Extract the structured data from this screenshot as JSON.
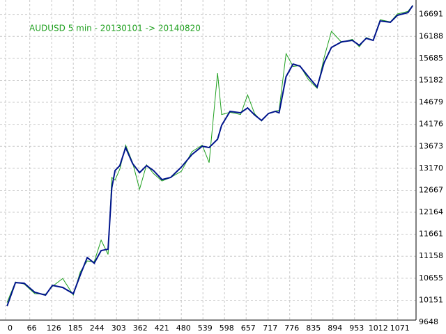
{
  "chart_data": {
    "type": "line",
    "title": "AUDUSD 5 min - 20130101 -> 20140820",
    "x": [
      4,
      27,
      51,
      80,
      109,
      128,
      156,
      185,
      204,
      223,
      242,
      261,
      280,
      290,
      299,
      312,
      328,
      347,
      366,
      385,
      404,
      427,
      451,
      480,
      509,
      537,
      556,
      579,
      590,
      613,
      642,
      661,
      680,
      699,
      718,
      737,
      747,
      766,
      785,
      804,
      827,
      851,
      870,
      890,
      918,
      947,
      966,
      985,
      1004,
      1023,
      1051,
      1070,
      1099,
      1112
    ],
    "series": [
      {
        "color": "#1fa01f",
        "values": [
          10100,
          10570,
          10520,
          10300,
          10290,
          10470,
          10650,
          10270,
          10800,
          11050,
          11030,
          11527,
          11200,
          12959,
          12900,
          13150,
          13700,
          13300,
          12690,
          13250,
          13050,
          12880,
          12960,
          13100,
          13550,
          13700,
          13300,
          15347,
          14400,
          14450,
          14400,
          14850,
          14420,
          14250,
          14430,
          14480,
          14500,
          15793,
          15500,
          15520,
          15200,
          15000,
          15700,
          16303,
          16050,
          16120,
          15950,
          16160,
          16100,
          16570,
          16520,
          16700,
          16760,
          16900
        ]
      },
      {
        "color": "#00148c",
        "values": [
          10014,
          10555,
          10540,
          10333,
          10269,
          10492,
          10444,
          10300,
          10730,
          11128,
          11000,
          11288,
          11320,
          12720,
          13118,
          13230,
          13644,
          13278,
          13070,
          13230,
          13118,
          12912,
          12960,
          13198,
          13485,
          13676,
          13644,
          13835,
          14153,
          14472,
          14440,
          14551,
          14392,
          14265,
          14424,
          14472,
          14440,
          15268,
          15554,
          15507,
          15268,
          15029,
          15586,
          15936,
          16064,
          16096,
          15984,
          16143,
          16096,
          16541,
          16510,
          16669,
          16732,
          16891
        ]
      }
    ],
    "xlim": [
      0,
      1121
    ],
    "xticks": [
      0,
      66,
      126,
      185,
      244,
      303,
      362,
      421,
      480,
      539,
      598,
      657,
      717,
      776,
      835,
      894,
      953,
      1012,
      1071
    ],
    "ylim": [
      9570,
      17020
    ],
    "yticks": [
      9648,
      10151,
      10655,
      11158,
      11661,
      12164,
      12667,
      13170,
      13673,
      14176,
      14679,
      15182,
      15685,
      16188,
      16691
    ],
    "grid": true
  }
}
